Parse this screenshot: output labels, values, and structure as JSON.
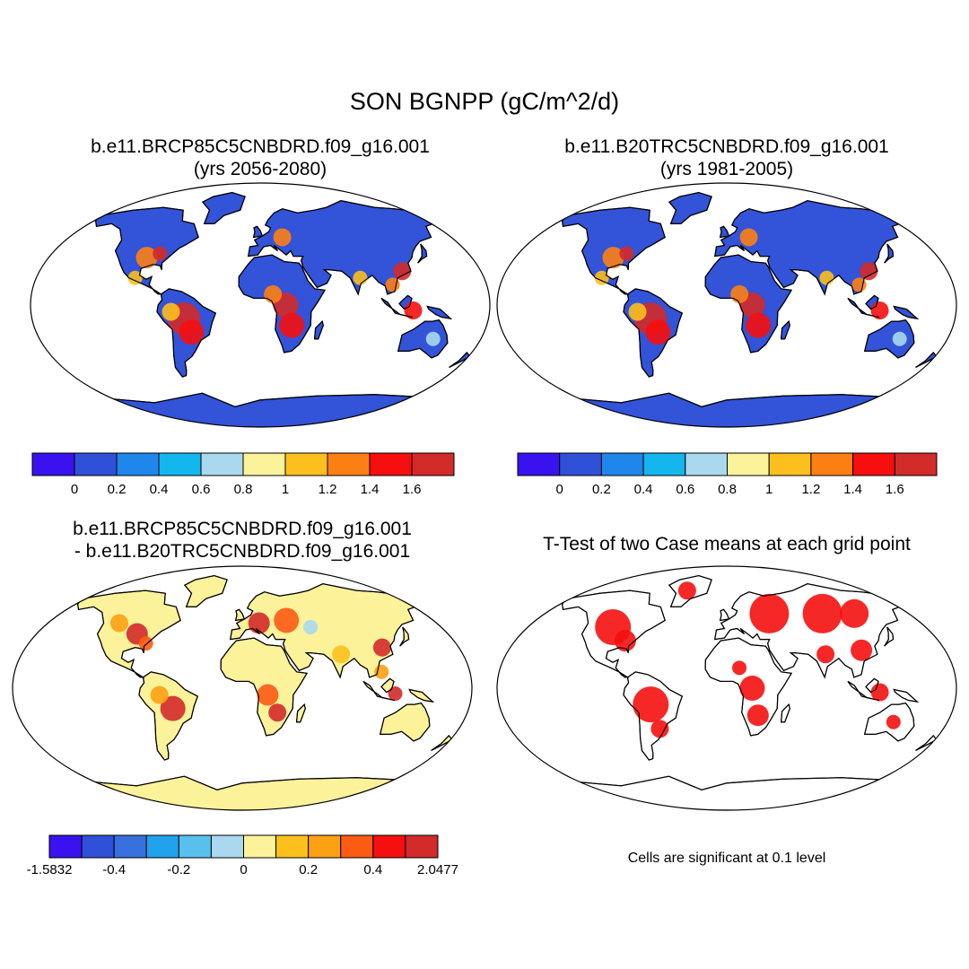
{
  "title": "SON BGNPP (gC/m^2/d)",
  "panels": {
    "case1": {
      "title_line1": "b.e11.BRCP85C5CNBDRD.f09_g16.001",
      "title_line2": "(yrs 2056-2080)"
    },
    "case2": {
      "title_line1": "b.e11.B20TRC5CNBDRD.f09_g16.001",
      "title_line2": "(yrs 1981-2005)"
    },
    "diff": {
      "title_line1": "b.e11.BRCP85C5CNBDRD.f09_g16.001",
      "title_line2": "- b.e11.B20TRC5CNBDRD.f09_g16.001"
    },
    "ttest": {
      "title": "T-Test of two Case means at each grid point",
      "note": "Cells are significant at 0.1 level"
    }
  },
  "colorbars": {
    "abs": {
      "colors": [
        "#3a12ef",
        "#2f50d8",
        "#1f86ec",
        "#14b6ee",
        "#a9d8ef",
        "#fbf29a",
        "#fcbf1e",
        "#fc7f14",
        "#f50f0f",
        "#d32a2a"
      ],
      "labels": [
        "0",
        "0.2",
        "0.4",
        "0.6",
        "0.8",
        "1",
        "1.2",
        "1.4",
        "1.6"
      ]
    },
    "diff": {
      "colors": [
        "#3a12ef",
        "#2f50d8",
        "#3671dd",
        "#20a2ec",
        "#59c0ee",
        "#a9d8ef",
        "#fbf29a",
        "#fcc01c",
        "#fca014",
        "#fc5b14",
        "#f50f0f",
        "#d32a2a"
      ],
      "labels": [
        "-1.5832",
        "-0.4",
        "-0.2",
        "0",
        "0.2",
        "0.4",
        "2.0477"
      ]
    }
  },
  "map_colors": {
    "case_background": "#3353d8",
    "diff_background": "#fbf29a",
    "ttest_significant": "#f50f0f"
  }
}
